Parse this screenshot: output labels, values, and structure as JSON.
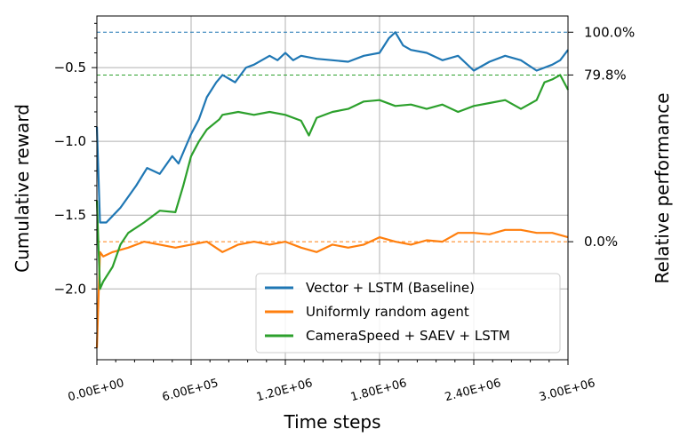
{
  "chart_data": {
    "type": "line",
    "xlabel": "Time steps",
    "ylabel": "Cumulative reward",
    "y2label": "Relative performance",
    "xlim": [
      0,
      3000000
    ],
    "ylim": [
      -2.48,
      -0.15
    ],
    "x_ticks": [
      0,
      600000,
      1200000,
      1800000,
      2400000,
      3000000
    ],
    "x_tick_labels": [
      "0.00E+00",
      "6.00E+05",
      "1.20E+06",
      "1.80E+06",
      "2.40E+06",
      "3.00E+06"
    ],
    "y_ticks": [
      -2.0,
      -1.5,
      -1.0,
      -0.5
    ],
    "y_tick_labels": [
      "−2.0",
      "−1.5",
      "−1.0",
      "−0.5"
    ],
    "y2_ticks": [
      {
        "value": -0.26,
        "label": "100.0%"
      },
      {
        "value": -0.55,
        "label": "79.8%"
      },
      {
        "value": -1.68,
        "label": "0.0%"
      }
    ],
    "grid": true,
    "legend_position": "lower-right",
    "reference_lines": [
      {
        "y": -0.26,
        "color": "#1f77b4",
        "style": "dashed"
      },
      {
        "y": -0.55,
        "color": "#2ca02c",
        "style": "dashed"
      },
      {
        "y": -1.68,
        "color": "#ff7f0e",
        "style": "dashed"
      }
    ],
    "series": [
      {
        "name": "Vector + LSTM (Baseline)",
        "color": "#1f77b4",
        "x": [
          0,
          20000,
          60000,
          150000,
          250000,
          320000,
          400000,
          480000,
          520000,
          560000,
          600000,
          650000,
          700000,
          760000,
          800000,
          880000,
          950000,
          1000000,
          1050000,
          1100000,
          1150000,
          1200000,
          1250000,
          1300000,
          1400000,
          1500000,
          1600000,
          1700000,
          1800000,
          1860000,
          1900000,
          1950000,
          2000000,
          2100000,
          2200000,
          2300000,
          2400000,
          2500000,
          2600000,
          2700000,
          2800000,
          2900000,
          2950000,
          3000000
        ],
        "y": [
          -0.9,
          -1.55,
          -1.55,
          -1.45,
          -1.3,
          -1.18,
          -1.22,
          -1.1,
          -1.15,
          -1.05,
          -0.95,
          -0.85,
          -0.7,
          -0.6,
          -0.55,
          -0.6,
          -0.5,
          -0.48,
          -0.45,
          -0.42,
          -0.45,
          -0.4,
          -0.45,
          -0.42,
          -0.44,
          -0.45,
          -0.46,
          -0.42,
          -0.4,
          -0.3,
          -0.26,
          -0.35,
          -0.38,
          -0.4,
          -0.45,
          -0.42,
          -0.52,
          -0.46,
          -0.42,
          -0.45,
          -0.52,
          -0.48,
          -0.45,
          -0.38
        ]
      },
      {
        "name": "Uniformly random agent",
        "color": "#ff7f0e",
        "x": [
          0,
          20000,
          40000,
          100000,
          200000,
          300000,
          400000,
          500000,
          600000,
          700000,
          800000,
          900000,
          1000000,
          1100000,
          1200000,
          1300000,
          1400000,
          1500000,
          1600000,
          1700000,
          1800000,
          1900000,
          2000000,
          2100000,
          2200000,
          2300000,
          2400000,
          2500000,
          2600000,
          2700000,
          2800000,
          2900000,
          3000000
        ],
        "y": [
          -2.4,
          -1.75,
          -1.78,
          -1.75,
          -1.72,
          -1.68,
          -1.7,
          -1.72,
          -1.7,
          -1.68,
          -1.75,
          -1.7,
          -1.68,
          -1.7,
          -1.68,
          -1.72,
          -1.75,
          -1.7,
          -1.72,
          -1.7,
          -1.65,
          -1.68,
          -1.7,
          -1.67,
          -1.68,
          -1.62,
          -1.62,
          -1.63,
          -1.6,
          -1.6,
          -1.62,
          -1.62,
          -1.65
        ]
      },
      {
        "name": "CameraSpeed + SAEV + LSTM",
        "color": "#2ca02c",
        "x": [
          0,
          20000,
          40000,
          100000,
          150000,
          200000,
          300000,
          400000,
          500000,
          550000,
          600000,
          650000,
          700000,
          780000,
          800000,
          900000,
          1000000,
          1100000,
          1200000,
          1300000,
          1350000,
          1400000,
          1500000,
          1600000,
          1700000,
          1800000,
          1900000,
          2000000,
          2100000,
          2200000,
          2300000,
          2400000,
          2500000,
          2600000,
          2700000,
          2800000,
          2850000,
          2900000,
          2950000,
          3000000
        ],
        "y": [
          -1.4,
          -2.0,
          -1.95,
          -1.85,
          -1.7,
          -1.62,
          -1.55,
          -1.47,
          -1.48,
          -1.3,
          -1.1,
          -1.0,
          -0.92,
          -0.85,
          -0.82,
          -0.8,
          -0.82,
          -0.8,
          -0.82,
          -0.86,
          -0.96,
          -0.84,
          -0.8,
          -0.78,
          -0.73,
          -0.72,
          -0.76,
          -0.75,
          -0.78,
          -0.75,
          -0.8,
          -0.76,
          -0.74,
          -0.72,
          -0.78,
          -0.72,
          -0.6,
          -0.58,
          -0.55,
          -0.65
        ]
      }
    ]
  }
}
